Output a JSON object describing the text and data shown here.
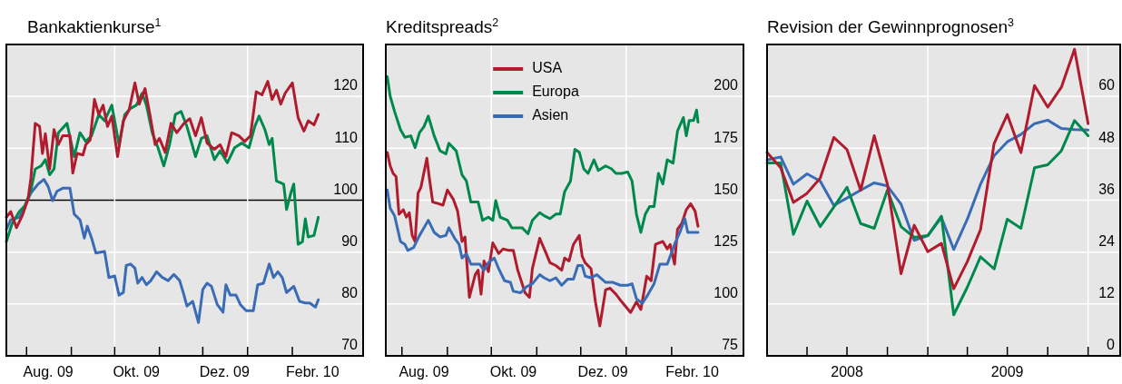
{
  "chart_data": [
    {
      "type": "line",
      "title": "Bankaktienkurse$^{1}$",
      "xlim": [
        "2009-07-18",
        "2010-03-22"
      ],
      "xticks": [
        {
          "value": "2009-08-01",
          "label": null
        },
        {
          "value": "2009-09-01",
          "label": null
        },
        {
          "value": "2009-10-01",
          "label": null
        },
        {
          "value": "2009-11-01",
          "label": null
        },
        {
          "value": "2009-12-01",
          "label": null
        },
        {
          "value": "2010-01-01",
          "label": null
        },
        {
          "value": "2010-02-01",
          "label": null
        },
        {
          "value": "2009-08-16",
          "label": "Aug. 09"
        },
        {
          "value": "2009-10-16",
          "label": "Okt. 09"
        },
        {
          "value": "2009-12-16",
          "label": "Dez. 09"
        },
        {
          "value": "2010-02-15",
          "label": "Febr. 10"
        }
      ],
      "ylim": [
        70,
        130
      ],
      "yticks": [
        70,
        80,
        90,
        100,
        110,
        120
      ],
      "grid": "y",
      "legend": false,
      "ref_lines": [
        {
          "axis": "y",
          "value": 100,
          "color": "#000000"
        },
        {
          "axis": "x",
          "value": "2009-10-01",
          "color": "#ffffff"
        },
        {
          "axis": "x",
          "value": "2010-01-01",
          "color": "#ffffff"
        }
      ],
      "series": [
        {
          "color": "#3a6cb5",
          "x": [
            "2009-07-18",
            "2009-07-21",
            "2009-07-27",
            "2009-07-31",
            "2009-08-04",
            "2009-08-09",
            "2009-08-13",
            "2009-08-16",
            "2009-08-19",
            "2009-08-22",
            "2009-08-26",
            "2009-08-31",
            "2009-09-03",
            "2009-09-07",
            "2009-09-10",
            "2009-09-12",
            "2009-09-15",
            "2009-09-18",
            "2009-09-24",
            "2009-09-27",
            "2009-10-01",
            "2009-10-04",
            "2009-10-07",
            "2009-10-09",
            "2009-10-12",
            "2009-10-15",
            "2009-10-17",
            "2009-10-20",
            "2009-10-23",
            "2009-10-26",
            "2009-10-30",
            "2009-11-03",
            "2009-11-07",
            "2009-11-11",
            "2009-11-15",
            "2009-11-18",
            "2009-11-20",
            "2009-11-24",
            "2009-11-28",
            "2009-12-01",
            "2009-12-04",
            "2009-12-07",
            "2009-12-11",
            "2009-12-15",
            "2009-12-17",
            "2009-12-20",
            "2009-12-24",
            "2009-12-27",
            "2009-12-31",
            "2010-01-05",
            "2010-01-08",
            "2010-01-12",
            "2010-01-16",
            "2010-01-19",
            "2010-01-22",
            "2010-01-25",
            "2010-01-28",
            "2010-02-02",
            "2010-02-06",
            "2010-02-10",
            "2010-02-13",
            "2010-02-17",
            "2010-02-19"
          ],
          "values": [
            94.4,
            96.2,
            96.7,
            99,
            101.4,
            103.1,
            104,
            102.6,
            99.9,
            101.7,
            102.3,
            102.3,
            97.3,
            96.2,
            92.7,
            95,
            92.7,
            89.8,
            90.1,
            85.1,
            85.4,
            81.7,
            82.2,
            87.4,
            87.7,
            86.9,
            84,
            85.1,
            83.7,
            84.5,
            86.2,
            85.1,
            84.5,
            85.7,
            84.5,
            81.7,
            79.6,
            80.5,
            76.4,
            82.8,
            84,
            83.4,
            79.9,
            78.4,
            83.7,
            81.7,
            81.7,
            79.9,
            78.7,
            78.7,
            83.7,
            84,
            87.7,
            85.1,
            86.2,
            85.1,
            82.2,
            83.4,
            80.5,
            80.2,
            80.2,
            79.4,
            80.8
          ]
        },
        {
          "color": "#00894c",
          "x": [
            "2009-07-18",
            "2009-07-22",
            "2009-07-27",
            "2009-07-31",
            "2009-08-04",
            "2009-08-07",
            "2009-08-11",
            "2009-08-14",
            "2009-08-17",
            "2009-08-20",
            "2009-08-23",
            "2009-08-29",
            "2009-09-03",
            "2009-09-07",
            "2009-09-11",
            "2009-09-15",
            "2009-09-20",
            "2009-09-24",
            "2009-09-29",
            "2009-10-04",
            "2009-10-08",
            "2009-10-12",
            "2009-10-16",
            "2009-10-20",
            "2009-10-23",
            "2009-10-27",
            "2009-10-31",
            "2009-11-04",
            "2009-11-08",
            "2009-11-12",
            "2009-11-16",
            "2009-11-20",
            "2009-11-26",
            "2009-11-30",
            "2009-12-04",
            "2009-12-09",
            "2009-12-13",
            "2009-12-18",
            "2009-12-23",
            "2009-12-28",
            "2010-01-02",
            "2010-01-06",
            "2010-01-09",
            "2010-01-13",
            "2010-01-16",
            "2010-01-18",
            "2010-01-21",
            "2010-01-26",
            "2010-01-28",
            "2010-01-31",
            "2010-02-02",
            "2010-02-05",
            "2010-02-08",
            "2010-02-10",
            "2010-02-12",
            "2010-02-16",
            "2010-02-19"
          ],
          "values": [
            92,
            95.5,
            97.8,
            99,
            101.9,
            106,
            106.6,
            107.8,
            104.9,
            106,
            113,
            114.8,
            108.4,
            113,
            111.3,
            112.4,
            116.5,
            115.3,
            118.3,
            110.7,
            116.5,
            117.7,
            118.3,
            120.6,
            118.3,
            113,
            110.1,
            106.6,
            110.7,
            116.5,
            117.1,
            114.2,
            108.4,
            111.9,
            112.4,
            107.8,
            109.5,
            107.2,
            110.1,
            111,
            110.1,
            114.2,
            116.2,
            113.6,
            110.7,
            111.9,
            103.7,
            103.1,
            98.2,
            101.4,
            103.1,
            91.5,
            92,
            96.4,
            92.9,
            93.2,
            96.7
          ]
        },
        {
          "color": "#b01c2e",
          "x": [
            "2009-07-18",
            "2009-07-21",
            "2009-07-25",
            "2009-07-29",
            "2009-08-02",
            "2009-08-04",
            "2009-08-07",
            "2009-08-10",
            "2009-08-12",
            "2009-08-14",
            "2009-08-17",
            "2009-08-20",
            "2009-08-23",
            "2009-08-26",
            "2009-08-31",
            "2009-09-02",
            "2009-09-05",
            "2009-09-09",
            "2009-09-11",
            "2009-09-14",
            "2009-09-17",
            "2009-09-20",
            "2009-09-23",
            "2009-09-26",
            "2009-09-29",
            "2009-10-03",
            "2009-10-07",
            "2009-10-11",
            "2009-10-15",
            "2009-10-18",
            "2009-10-22",
            "2009-10-25",
            "2009-10-29",
            "2009-11-01",
            "2009-11-05",
            "2009-11-09",
            "2009-11-13",
            "2009-11-18",
            "2009-11-22",
            "2009-11-26",
            "2009-11-30",
            "2009-12-04",
            "2009-12-09",
            "2009-12-13",
            "2009-12-17",
            "2009-12-21",
            "2009-12-26",
            "2009-12-30",
            "2010-01-03",
            "2010-01-07",
            "2010-01-11",
            "2010-01-15",
            "2010-01-18",
            "2010-01-21",
            "2010-01-24",
            "2010-01-27",
            "2010-02-01",
            "2010-02-05",
            "2010-02-09",
            "2010-02-12",
            "2010-02-16",
            "2010-02-19"
          ],
          "values": [
            96.7,
            97.8,
            94.7,
            97,
            100.2,
            104.3,
            114.8,
            114.2,
            109,
            112.8,
            106,
            113.6,
            110.7,
            112.4,
            112.4,
            105.2,
            109,
            108.7,
            110.7,
            111.6,
            119.4,
            116.5,
            118.3,
            114.2,
            116.2,
            108.4,
            115.3,
            117.4,
            122.6,
            118.5,
            121.5,
            117.1,
            110.7,
            111.9,
            109.2,
            114.8,
            113,
            114.8,
            115.7,
            112.4,
            115.9,
            111,
            109.8,
            110.7,
            108.4,
            113,
            112.4,
            111.3,
            112.4,
            120.9,
            120.3,
            122.9,
            119.4,
            121.2,
            118.5,
            120.6,
            122.6,
            115.9,
            113.3,
            115.3,
            114.5,
            116.5
          ]
        }
      ]
    },
    {
      "type": "line",
      "title": "Kreditspreads$^{2}$",
      "xlim": [
        "2009-07-21",
        "2010-03-22"
      ],
      "xticks": [
        {
          "value": "2009-08-01",
          "label": null
        },
        {
          "value": "2009-09-01",
          "label": null
        },
        {
          "value": "2009-10-01",
          "label": null
        },
        {
          "value": "2009-11-01",
          "label": null
        },
        {
          "value": "2009-12-01",
          "label": null
        },
        {
          "value": "2010-01-01",
          "label": null
        },
        {
          "value": "2010-02-01",
          "label": null
        },
        {
          "value": "2009-08-16",
          "label": "Aug. 09"
        },
        {
          "value": "2009-10-16",
          "label": "Okt. 09"
        },
        {
          "value": "2009-12-16",
          "label": "Dez. 09"
        },
        {
          "value": "2010-02-15",
          "label": "Febr. 10"
        }
      ],
      "ylim": [
        75,
        225
      ],
      "yticks": [
        75,
        100,
        125,
        150,
        175,
        200
      ],
      "grid": "y",
      "legend": "top",
      "ref_lines": [
        {
          "axis": "x",
          "value": "2009-10-01",
          "color": "#ffffff"
        },
        {
          "axis": "x",
          "value": "2010-01-01",
          "color": "#ffffff"
        }
      ],
      "series": [
        {
          "name": "USA",
          "color": "#b01c2e",
          "x": [
            "2009-07-22",
            "2009-07-24",
            "2009-07-26",
            "2009-07-28",
            "2009-07-30",
            "2009-08-02",
            "2009-08-04",
            "2009-08-06",
            "2009-08-08",
            "2009-08-10",
            "2009-08-12",
            "2009-08-14",
            "2009-08-18",
            "2009-08-20",
            "2009-08-22",
            "2009-08-26",
            "2009-08-29",
            "2009-09-01",
            "2009-09-05",
            "2009-09-08",
            "2009-09-11",
            "2009-09-13",
            "2009-09-16",
            "2009-09-20",
            "2009-09-22",
            "2009-09-24",
            "2009-09-26",
            "2009-09-29",
            "2009-10-02",
            "2009-10-06",
            "2009-10-09",
            "2009-10-13",
            "2009-10-16",
            "2009-10-19",
            "2009-10-24",
            "2009-10-27",
            "2009-10-29",
            "2009-10-31",
            "2009-11-03",
            "2009-11-07",
            "2009-11-10",
            "2009-11-14",
            "2009-11-18",
            "2009-11-20",
            "2009-11-23",
            "2009-11-26",
            "2009-11-30",
            "2009-12-02",
            "2009-12-04",
            "2009-12-08",
            "2009-12-11",
            "2009-12-14",
            "2009-12-18",
            "2009-12-21",
            "2009-12-25",
            "2009-12-29",
            "2010-01-04",
            "2010-01-08",
            "2010-01-11",
            "2010-01-15",
            "2010-01-18",
            "2010-01-21",
            "2010-01-26",
            "2010-01-29",
            "2010-01-31",
            "2010-02-03",
            "2010-02-05",
            "2010-02-08",
            "2010-02-11",
            "2010-02-14",
            "2010-02-17",
            "2010-02-19"
          ],
          "values": [
            173,
            166.5,
            162.9,
            161.4,
            143.2,
            145.4,
            141.8,
            144,
            133,
            130.1,
            153.4,
            156.3,
            170.2,
            159.2,
            149.1,
            148.3,
            147.6,
            154.9,
            150.5,
            144.7,
            130.1,
            132.3,
            103.2,
            114.1,
            116.3,
            104.7,
            120.7,
            115.6,
            129.4,
            124.3,
            126.5,
            125.8,
            125.8,
            116.3,
            105.4,
            103.2,
            117,
            122.9,
            131.6,
            125,
            119.9,
            118.5,
            116.3,
            122.1,
            120.7,
            128.7,
            133,
            122.9,
            119.9,
            117,
            101,
            89.4,
            106.9,
            107.6,
            104.7,
            101,
            95.9,
            101,
            97.3,
            113.4,
            111.2,
            128.7,
            130.1,
            126.5,
            128.7,
            119.2,
            136,
            138.9,
            145.4,
            148.3,
            144.7,
            137.4
          ]
        },
        {
          "name": "Europa",
          "color": "#00894c",
          "x": [
            "2009-07-22",
            "2009-07-24",
            "2009-07-27",
            "2009-07-31",
            "2009-08-03",
            "2009-08-07",
            "2009-08-10",
            "2009-08-13",
            "2009-08-16",
            "2009-08-19",
            "2009-08-23",
            "2009-08-27",
            "2009-08-31",
            "2009-09-02",
            "2009-09-07",
            "2009-09-11",
            "2009-09-14",
            "2009-09-17",
            "2009-09-22",
            "2009-09-25",
            "2009-09-29",
            "2009-10-02",
            "2009-10-04",
            "2009-10-07",
            "2009-10-12",
            "2009-10-15",
            "2009-10-19",
            "2009-10-22",
            "2009-10-26",
            "2009-10-29",
            "2009-11-03",
            "2009-11-06",
            "2009-11-10",
            "2009-11-14",
            "2009-11-17",
            "2009-11-20",
            "2009-11-24",
            "2009-11-27",
            "2009-11-30",
            "2009-12-03",
            "2009-12-06",
            "2009-12-10",
            "2009-12-13",
            "2009-12-18",
            "2009-12-22",
            "2009-12-25",
            "2009-12-29",
            "2010-01-02",
            "2010-01-05",
            "2010-01-08",
            "2010-01-11",
            "2010-01-14",
            "2010-01-17",
            "2010-01-20",
            "2010-01-23",
            "2010-01-26",
            "2010-01-29",
            "2010-02-02",
            "2010-02-05",
            "2010-02-09",
            "2010-02-11",
            "2010-02-13",
            "2010-02-16",
            "2010-02-18",
            "2010-02-19"
          ],
          "values": [
            209.5,
            200,
            192.7,
            184,
            180.3,
            181,
            175.3,
            182.5,
            185.4,
            190.5,
            181,
            173.8,
            172.3,
            177.4,
            173.8,
            162.2,
            159.2,
            149.1,
            149.1,
            140.3,
            141.8,
            140.3,
            149.8,
            141.8,
            140.3,
            136.7,
            136.7,
            136.7,
            133.8,
            140.3,
            144,
            142.5,
            141.1,
            143.3,
            143.3,
            154.1,
            159.2,
            174.5,
            173.1,
            165.1,
            162.9,
            169.4,
            164.3,
            166.5,
            165.1,
            162.9,
            162.9,
            163.6,
            159.2,
            143.2,
            134.5,
            143.2,
            146.9,
            146.9,
            162.9,
            157.8,
            169.4,
            167.9,
            183.3,
            189.8,
            181,
            188.4,
            188.4,
            193.4,
            187.6
          ]
        },
        {
          "name": "Asien",
          "color": "#3a6cb5",
          "x": [
            "2009-07-22",
            "2009-07-24",
            "2009-07-27",
            "2009-07-31",
            "2009-08-03",
            "2009-08-05",
            "2009-08-09",
            "2009-08-13",
            "2009-08-19",
            "2009-08-23",
            "2009-08-27",
            "2009-08-31",
            "2009-09-02",
            "2009-09-06",
            "2009-09-09",
            "2009-09-11",
            "2009-09-14",
            "2009-09-17",
            "2009-09-23",
            "2009-09-26",
            "2009-09-29",
            "2009-10-03",
            "2009-10-06",
            "2009-10-10",
            "2009-10-14",
            "2009-10-16",
            "2009-10-21",
            "2009-10-25",
            "2009-10-29",
            "2009-11-03",
            "2009-11-06",
            "2009-11-10",
            "2009-11-14",
            "2009-11-18",
            "2009-11-22",
            "2009-11-26",
            "2009-11-29",
            "2009-12-02",
            "2009-12-04",
            "2009-12-08",
            "2009-12-12",
            "2009-12-18",
            "2009-12-23",
            "2009-12-28",
            "2010-01-02",
            "2010-01-05",
            "2010-01-08",
            "2010-01-12",
            "2010-01-16",
            "2010-01-20",
            "2010-01-24",
            "2010-01-29",
            "2010-02-03",
            "2010-02-07",
            "2010-02-10",
            "2010-02-12",
            "2010-02-15",
            "2010-02-19"
          ],
          "values": [
            154.9,
            146.1,
            142.5,
            130.1,
            128.7,
            125.8,
            127.2,
            133,
            140.3,
            134.5,
            132.3,
            133,
            136.7,
            131.6,
            128.7,
            122.1,
            124.3,
            119.2,
            119.2,
            116.3,
            119.9,
            122.1,
            117,
            111.2,
            110.4,
            106.1,
            105.4,
            108.3,
            109.7,
            114.1,
            112.6,
            111.2,
            112.6,
            109,
            111.9,
            111.9,
            118.5,
            118.5,
            113.4,
            112.6,
            114.1,
            110.4,
            110.4,
            109,
            109,
            109.7,
            102.5,
            100.3,
            104.7,
            109.7,
            119.2,
            119.2,
            128.7,
            135.2,
            141.1,
            134.5,
            134.5,
            134.5
          ]
        }
      ]
    },
    {
      "type": "line",
      "title": "Revision der Gewinnprognosen$^{3}$",
      "xlim": [
        "2008-01-01",
        "2010-03-15"
      ],
      "xticks": [
        {
          "value": "2008-04-01",
          "label": null
        },
        {
          "value": "2008-07-01",
          "label": null
        },
        {
          "value": "2008-10-01",
          "label": null
        },
        {
          "value": "2009-01-01",
          "label": null
        },
        {
          "value": "2009-04-01",
          "label": null
        },
        {
          "value": "2009-07-01",
          "label": null
        },
        {
          "value": "2009-10-01",
          "label": null
        },
        {
          "value": "2010-01-01",
          "label": null
        },
        {
          "value": "2008-07-01",
          "label": "2008"
        },
        {
          "value": "2009-07-01",
          "label": "2009"
        }
      ],
      "ylim": [
        0,
        72
      ],
      "yticks": [
        0,
        12,
        24,
        36,
        48,
        60
      ],
      "grid": "y",
      "legend": false,
      "ref_lines": [
        {
          "axis": "x",
          "value": "2009-01-01",
          "color": "#ffffff"
        },
        {
          "axis": "x",
          "value": "2010-01-01",
          "color": "#ffffff"
        }
      ],
      "x": [
        "2008-01",
        "2008-02",
        "2008-03",
        "2008-04",
        "2008-05",
        "2008-06",
        "2008-07",
        "2008-08",
        "2008-09",
        "2008-10",
        "2008-11",
        "2008-12",
        "2009-01",
        "2009-02",
        "2009-03",
        "2009-04",
        "2009-05",
        "2009-06",
        "2009-07",
        "2009-08",
        "2009-09",
        "2009-10",
        "2009-11",
        "2009-12",
        "2010-01"
      ],
      "series": [
        {
          "color": "#3a6cb5",
          "values": [
            45.3,
            46,
            39.7,
            42.1,
            40.4,
            34.8,
            36.5,
            38.3,
            40,
            39.3,
            35.1,
            26.7,
            27.8,
            32,
            24.6,
            31.6,
            39.7,
            46.3,
            49.5,
            51.2,
            53.7,
            54.5,
            52.6,
            52.3,
            52.2
          ]
        },
        {
          "color": "#00894c",
          "values": [
            44.6,
            44.6,
            28.1,
            35.8,
            29.9,
            34.4,
            39,
            30.6,
            29.5,
            38.3,
            29.9,
            27.4,
            27.8,
            32.3,
            9.5,
            15.9,
            22.9,
            20.1,
            31.6,
            29.5,
            43.5,
            44.2,
            47.4,
            54.4,
            50.9
          ]
        },
        {
          "color": "#b01c2e",
          "values": [
            47,
            43.5,
            35.5,
            37.6,
            41.1,
            50.5,
            47.7,
            38.3,
            50.9,
            39.7,
            19,
            30.2,
            24.1,
            26,
            15.5,
            21.8,
            29.2,
            49.1,
            55.8,
            47,
            62.5,
            57.5,
            62.1,
            70.9,
            53.7
          ]
        }
      ]
    }
  ]
}
